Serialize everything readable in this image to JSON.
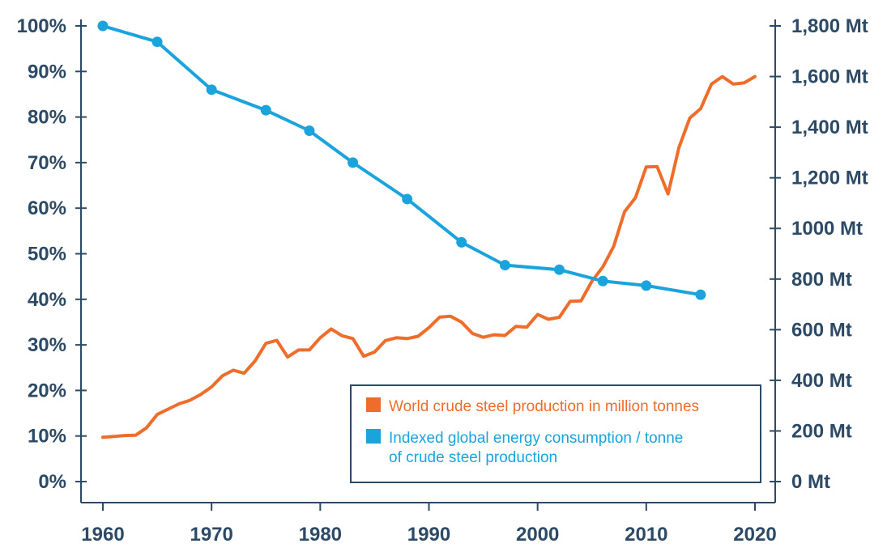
{
  "chart_data": {
    "type": "line",
    "colors": {
      "axis": "#2c4a66",
      "steel": "#ee6d2b",
      "energy": "#1aa3dc"
    },
    "x_ticks": [
      "1960",
      "1970",
      "1980",
      "1990",
      "2000",
      "2010",
      "2020"
    ],
    "xlim": [
      1960,
      2020
    ],
    "y_left": {
      "ticks": [
        "0%",
        "10%",
        "20%",
        "30%",
        "40%",
        "50%",
        "60%",
        "70%",
        "80%",
        "90%",
        "100%"
      ],
      "ylim": [
        0,
        100
      ]
    },
    "y_right": {
      "ticks": [
        "0 Mt",
        "200 Mt",
        "400 Mt",
        "600 Mt",
        "800 Mt",
        "1000 Mt",
        "1,200 Mt",
        "1,400 Mt",
        "1,600 Mt",
        "1,800 Mt"
      ],
      "ylim": [
        0,
        1800
      ]
    },
    "legend": {
      "position": "bottom-right"
    },
    "series": [
      {
        "name": "World crude steel production in million tonnes",
        "axis": "right",
        "markers": false,
        "x": [
          1960,
          1961,
          1962,
          1963,
          1964,
          1965,
          1966,
          1967,
          1968,
          1969,
          1970,
          1971,
          1972,
          1973,
          1974,
          1975,
          1976,
          1977,
          1978,
          1979,
          1980,
          1981,
          1982,
          1983,
          1984,
          1985,
          1986,
          1987,
          1988,
          1989,
          1990,
          1991,
          1992,
          1993,
          1994,
          1995,
          1996,
          1997,
          1998,
          1999,
          2000,
          2001,
          2002,
          2003,
          2004,
          2005,
          2006,
          2007,
          2008,
          2009,
          2010,
          2011,
          2012,
          2013,
          2014,
          2015,
          2016,
          2017,
          2018,
          2019,
          2020
        ],
        "values": [
          175,
          178,
          182,
          183,
          212,
          265,
          286,
          307,
          321,
          344,
          374,
          418,
          440,
          428,
          476,
          546,
          558,
          492,
          520,
          520,
          568,
          603,
          576,
          565,
          495,
          512,
          557,
          568,
          565,
          574,
          608,
          650,
          653,
          630,
          585,
          570,
          580,
          577,
          613,
          610,
          660,
          641,
          649,
          712,
          714,
          792,
          848,
          929,
          1066,
          1121,
          1243,
          1244,
          1136,
          1319,
          1436,
          1473,
          1570,
          1600,
          1570,
          1575,
          1600
        ]
      },
      {
        "name": "Indexed global energy consumption / tonne\nof crude steel production",
        "axis": "left",
        "markers": true,
        "x": [
          1960,
          1965,
          1970,
          1975,
          1979,
          1983,
          1988,
          1993,
          1997,
          2002,
          2006,
          2010,
          2015
        ],
        "values": [
          100,
          96.5,
          86,
          81.5,
          77,
          70,
          62,
          52.5,
          47.5,
          46.5,
          44,
          43,
          41
        ]
      }
    ]
  }
}
